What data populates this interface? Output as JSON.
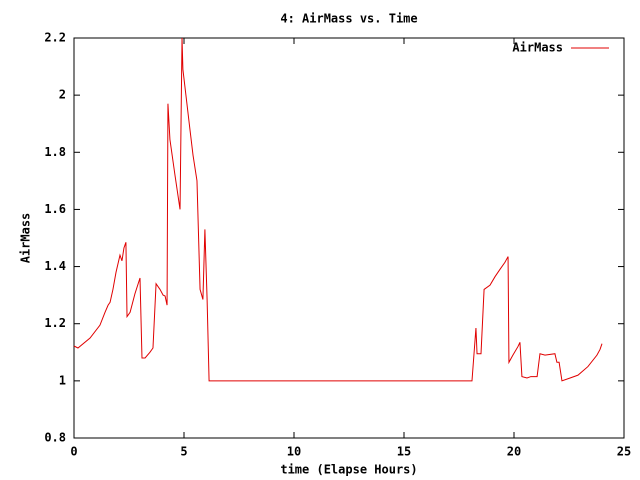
{
  "chart_data": {
    "type": "line",
    "title": "4: AirMass vs. Time",
    "x_label": "time (Elapse Hours)",
    "y_label": "AirMass",
    "x": [
      0,
      0.18,
      0.73,
      1.18,
      1.41,
      1.55,
      1.64,
      1.77,
      1.91,
      2.09,
      2.18,
      2.27,
      2.36,
      2.41,
      2.55,
      2.77,
      3.0,
      3.09,
      3.23,
      3.45,
      3.59,
      3.73,
      3.91,
      4.05,
      4.14,
      4.23,
      4.27,
      4.36,
      4.59,
      4.82,
      4.91,
      4.95,
      5.27,
      5.41,
      5.59,
      5.73,
      5.86,
      5.95,
      6.05,
      6.14,
      18.09,
      18.27,
      18.32,
      18.5,
      18.64,
      18.91,
      19.14,
      19.36,
      19.59,
      19.73,
      19.77,
      19.95,
      20.18,
      20.27,
      20.36,
      20.59,
      20.77,
      21.05,
      21.18,
      21.41,
      21.86,
      21.95,
      22.05,
      22.18,
      22.55,
      22.91,
      23.36,
      23.77,
      23.91,
      24.0
    ],
    "series": [
      {
        "name": "AirMass",
        "color": "#e00000",
        "values": [
          1.122,
          1.115,
          1.15,
          1.195,
          1.24,
          1.265,
          1.275,
          1.32,
          1.38,
          1.44,
          1.42,
          1.465,
          1.485,
          1.225,
          1.24,
          1.305,
          1.36,
          1.08,
          1.08,
          1.1,
          1.115,
          1.34,
          1.32,
          1.3,
          1.297,
          1.265,
          1.97,
          1.845,
          1.72,
          1.6,
          2.2,
          2.09,
          1.88,
          1.79,
          1.7,
          1.32,
          1.285,
          1.53,
          1.285,
          1.0,
          1.0,
          1.185,
          1.095,
          1.095,
          1.32,
          1.335,
          1.365,
          1.39,
          1.415,
          1.435,
          1.065,
          1.09,
          1.12,
          1.135,
          1.015,
          1.01,
          1.015,
          1.015,
          1.095,
          1.09,
          1.095,
          1.065,
          1.065,
          1.0,
          1.01,
          1.02,
          1.05,
          1.09,
          1.11,
          1.13
        ]
      }
    ],
    "xlim": [
      0,
      25
    ],
    "xticks": [
      0,
      5,
      10,
      15,
      20,
      25
    ],
    "ylim": [
      0.8,
      2.2
    ],
    "yticks": [
      0.8,
      1,
      1.2,
      1.4,
      1.6,
      1.8,
      2,
      2.2
    ],
    "legend": "upper right"
  }
}
